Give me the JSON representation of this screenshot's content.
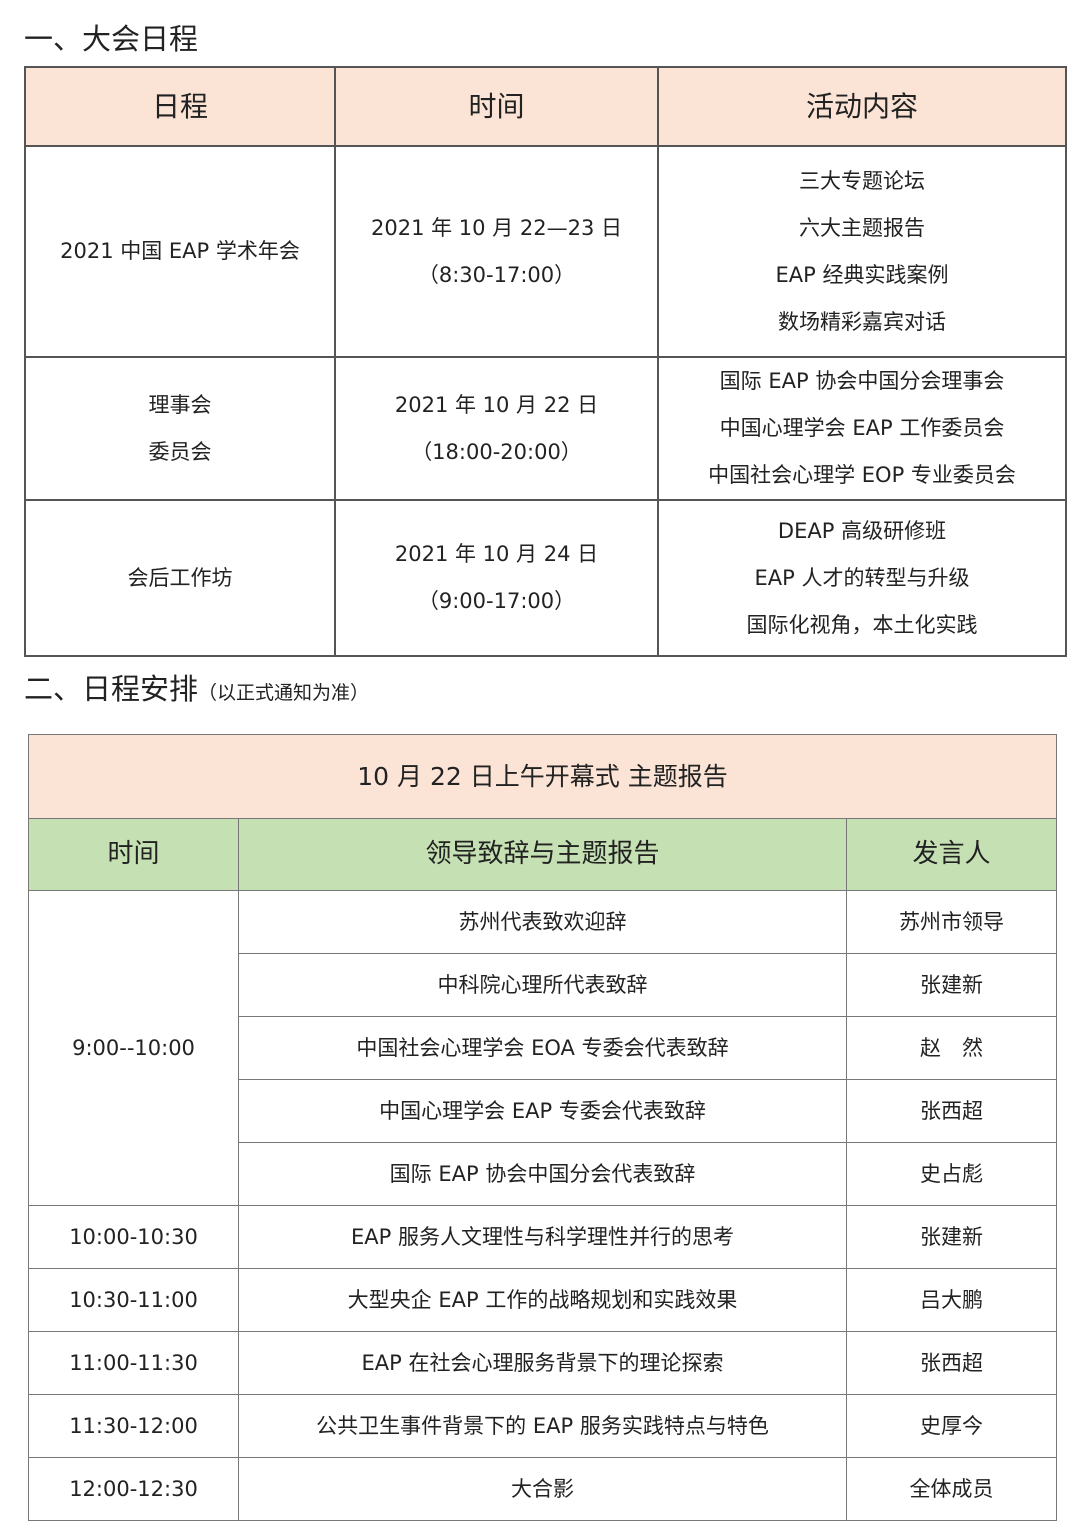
{
  "section1": {
    "title": "一、大会日程",
    "headers": [
      "日程",
      "时间",
      "活动内容"
    ],
    "rows": [
      {
        "name": [
          "2021 中国 EAP 学术年会"
        ],
        "time": [
          "2021 年 10 月 22—23 日",
          "（8:30-17:00）"
        ],
        "content": [
          "三大专题论坛",
          "六大主题报告",
          "EAP 经典实践案例",
          "数场精彩嘉宾对话"
        ]
      },
      {
        "name": [
          "理事会",
          "委员会"
        ],
        "time": [
          "2021 年 10 月 22 日",
          "（18:00-20:00）"
        ],
        "content": [
          "国际 EAP 协会中国分会理事会",
          "中国心理学会 EAP 工作委员会",
          "中国社会心理学 EOP 专业委员会"
        ]
      },
      {
        "name": [
          "会后工作坊"
        ],
        "time": [
          "2021 年 10 月 24 日",
          "（9:00-17:00）"
        ],
        "content": [
          "DEAP 高级研修班",
          "EAP 人才的转型与升级",
          "国际化视角，本土化实践"
        ]
      }
    ]
  },
  "section2": {
    "title": "二、日程安排",
    "note": "（以正式通知为准）",
    "table_title": "10 月 22 日上午开幕式 主题报告",
    "headers": [
      "时间",
      "领导致辞与主题报告",
      "发言人"
    ],
    "group_time": "9:00--10:00",
    "group_rows": [
      {
        "topic": "苏州代表致欢迎辞",
        "speaker": "苏州市领导"
      },
      {
        "topic": "中科院心理所代表致辞",
        "speaker": "张建新"
      },
      {
        "topic": "中国社会心理学会 EOA 专委会代表致辞",
        "speaker": "赵　然"
      },
      {
        "topic": "中国心理学会 EAP 专委会代表致辞",
        "speaker": "张西超"
      },
      {
        "topic": "国际 EAP 协会中国分会代表致辞",
        "speaker": "史占彪"
      }
    ],
    "rows": [
      {
        "time": "10:00-10:30",
        "topic": "EAP 服务人文理性与科学理性并行的思考",
        "speaker": "张建新"
      },
      {
        "time": "10:30-11:00",
        "topic": "大型央企 EAP 工作的战略规划和实践效果",
        "speaker": "吕大鹏"
      },
      {
        "time": "11:00-11:30",
        "topic": "EAP 在社会心理服务背景下的理论探索",
        "speaker": "张西超"
      },
      {
        "time": "11:30-12:00",
        "topic": "公共卫生事件背景下的 EAP 服务实践特点与特色",
        "speaker": "史厚今"
      },
      {
        "time": "12:00-12:30",
        "topic": "大合影",
        "speaker": "全体成员"
      }
    ]
  },
  "colors": {
    "header_peach": "#fbe4d5",
    "header_green": "#c5e0b3"
  }
}
